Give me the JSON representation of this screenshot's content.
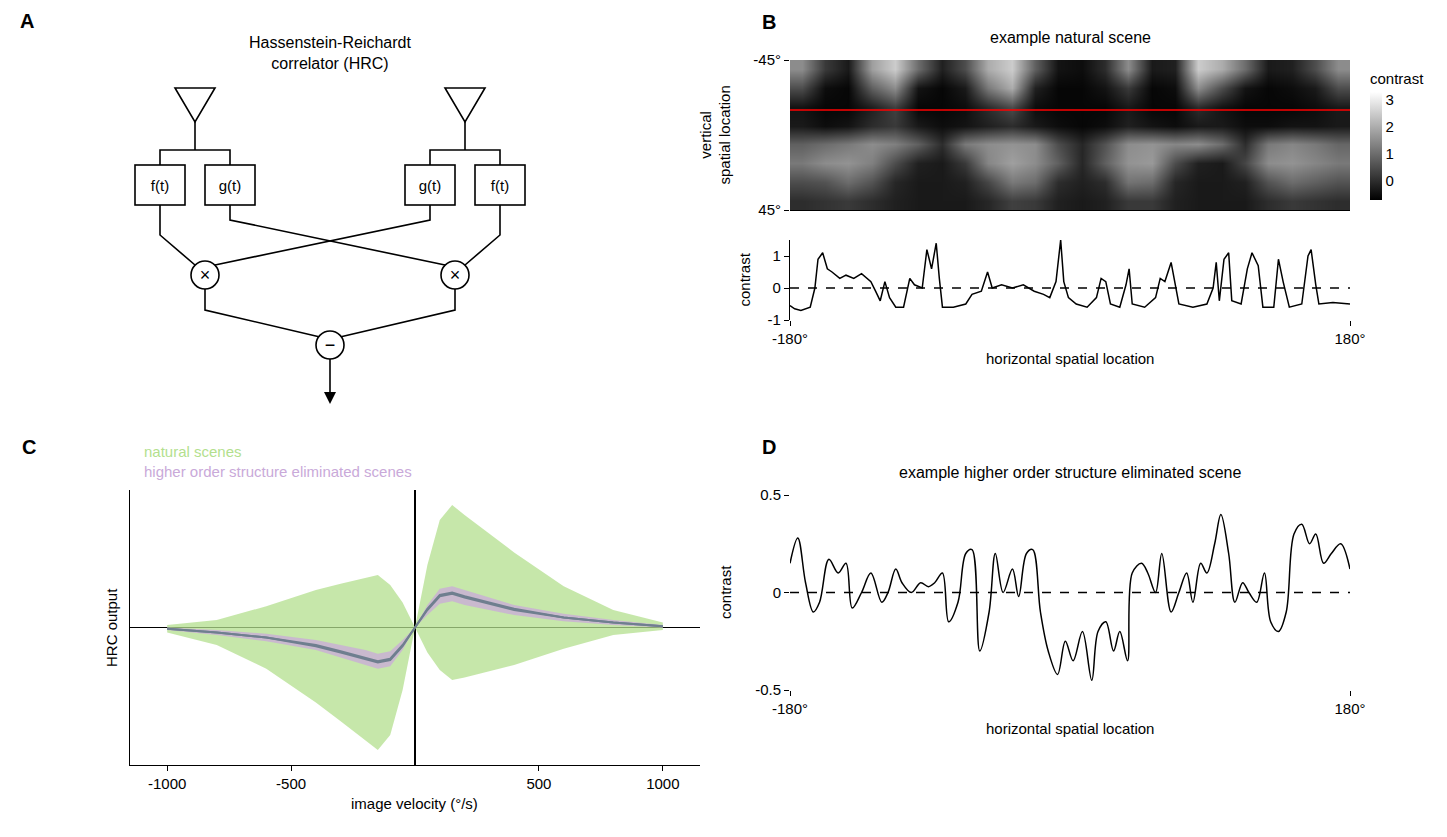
{
  "diagram": {
    "panel": "A",
    "title_lines": [
      "Hassenstein-Reichardt",
      "correlator (HRC)"
    ],
    "boxes": [
      "f(t)",
      "g(t)",
      "g(t)",
      "f(t)"
    ],
    "multiply": "×",
    "subtract": "−"
  },
  "chart_data": [
    {
      "type": "heatmap",
      "panel": "B",
      "title": "example natural scene",
      "ylabel": "vertical spatial location",
      "x": [
        -172.5,
        -157.5,
        -142.5,
        -127.5,
        -112.5,
        -97.5,
        -82.5,
        -67.5,
        -52.5,
        -37.5,
        -22.5,
        -7.5,
        7.5,
        22.5,
        37.5,
        52.5,
        67.5,
        82.5,
        97.5,
        112.5,
        127.5,
        142.5,
        157.5,
        172.5
      ],
      "y": [
        -39.375,
        -28.125,
        -16.875,
        -5.625,
        5.625,
        16.875,
        28.125,
        39.375
      ],
      "z": [
        [
          1.5,
          0.2,
          -0.3,
          1.8,
          2.5,
          1.0,
          -0.2,
          0.5,
          2.0,
          2.5,
          0.8,
          -0.4,
          -0.5,
          0.0,
          1.5,
          -0.3,
          -0.2,
          2.5,
          2.0,
          1.0,
          -0.3,
          -0.2,
          0.5,
          1.5
        ],
        [
          0.5,
          -0.5,
          -0.6,
          0.8,
          1.5,
          -0.4,
          -0.6,
          -0.3,
          1.2,
          2.0,
          -0.2,
          -0.6,
          -0.6,
          -0.4,
          0.2,
          -0.6,
          -0.5,
          1.5,
          0.5,
          -0.4,
          -0.6,
          -0.5,
          -0.3,
          0.5
        ],
        [
          -0.4,
          -0.6,
          -0.6,
          -0.2,
          0.3,
          -0.6,
          -0.6,
          -0.5,
          0.0,
          0.5,
          -0.5,
          -0.6,
          -0.6,
          -0.6,
          -0.3,
          -0.6,
          -0.6,
          0.0,
          -0.4,
          -0.6,
          -0.6,
          -0.6,
          -0.5,
          -0.3
        ],
        [
          -0.3,
          -0.5,
          -0.4,
          0.0,
          0.2,
          -0.3,
          -0.5,
          -0.4,
          -0.2,
          0.0,
          -0.3,
          -0.5,
          -0.6,
          -0.5,
          -0.2,
          -0.4,
          -0.5,
          -0.3,
          -0.3,
          -0.5,
          -0.5,
          -0.4,
          -0.4,
          -0.3
        ],
        [
          0.8,
          1.0,
          1.2,
          1.5,
          1.3,
          0.8,
          0.0,
          1.2,
          1.5,
          1.6,
          1.5,
          0.5,
          -0.1,
          0.6,
          1.5,
          1.6,
          1.4,
          1.5,
          1.0,
          0.0,
          1.2,
          1.4,
          1.2,
          0.9
        ],
        [
          1.2,
          1.5,
          1.6,
          1.3,
          0.5,
          -0.2,
          -0.3,
          0.2,
          1.4,
          1.8,
          1.5,
          0.8,
          -0.1,
          0.8,
          1.6,
          1.7,
          0.5,
          -0.2,
          -0.3,
          0.4,
          1.5,
          1.6,
          1.4,
          1.2
        ],
        [
          0.5,
          0.6,
          1.0,
          0.6,
          -0.1,
          -0.3,
          -0.3,
          -0.2,
          0.4,
          1.2,
          1.0,
          0.0,
          -0.2,
          0.0,
          1.1,
          1.0,
          -0.1,
          -0.3,
          -0.3,
          -0.2,
          0.6,
          1.0,
          0.8,
          0.6
        ],
        [
          0.0,
          0.1,
          0.2,
          0.0,
          -0.2,
          -0.3,
          -0.3,
          -0.3,
          -0.1,
          0.3,
          0.2,
          -0.2,
          -0.3,
          -0.2,
          0.2,
          0.2,
          -0.2,
          -0.3,
          -0.3,
          -0.3,
          0.0,
          0.2,
          0.1,
          0.0
        ]
      ],
      "xlim": [
        -180,
        180
      ],
      "ylim": [
        45,
        -45
      ],
      "yticks": [
        {
          "value": -45,
          "label": "-45°"
        },
        {
          "value": 45,
          "label": "45°"
        }
      ],
      "zlim": [
        -0.7,
        3.3
      ],
      "zticks": [
        0,
        1,
        2,
        3
      ],
      "colorbar_title": "contrast",
      "reference_line": {
        "y": -15,
        "color": "#ff0000",
        "line_style": "solid"
      },
      "tick_labels": "y",
      "grid": false
    },
    {
      "type": "line",
      "xlabel": "horizontal spatial location",
      "ylabel": "contrast",
      "x": [
        -180,
        -177,
        -173,
        -167,
        -164,
        -162,
        -159,
        -156,
        -153,
        -148,
        -144,
        -139,
        -134,
        -128,
        -125,
        -122,
        -119,
        -116,
        -112,
        -107,
        -103,
        -100,
        -95,
        -92,
        -89,
        -86,
        -84,
        -82,
        -75,
        -67,
        -63,
        -57,
        -53,
        -50,
        -44,
        -37,
        -30,
        -23,
        -17,
        -13,
        -9,
        -6,
        -4,
        -1,
        4,
        11,
        17,
        20,
        23,
        26,
        32,
        36,
        38,
        40,
        48,
        55,
        58,
        61,
        65,
        67,
        70,
        79,
        88,
        92,
        94,
        96,
        99,
        102,
        104,
        110,
        114,
        117,
        121,
        124,
        131,
        134,
        137,
        141,
        149,
        153,
        155,
        158,
        160,
        169,
        180
      ],
      "series": [
        {
          "color": "#000000",
          "line_style": "solid",
          "values": [
            -0.55,
            -0.65,
            -0.7,
            -0.6,
            0.0,
            0.9,
            1.1,
            0.6,
            0.5,
            0.3,
            0.4,
            0.3,
            0.45,
            0.2,
            -0.1,
            -0.4,
            0.2,
            -0.3,
            -0.6,
            -0.6,
            0.3,
            0.1,
            0.0,
            1.2,
            0.6,
            1.4,
            0.3,
            -0.6,
            -0.6,
            -0.5,
            -0.2,
            -0.1,
            0.5,
            0.0,
            0.1,
            0.0,
            0.1,
            -0.1,
            -0.2,
            -0.3,
            0.2,
            1.5,
            0.2,
            -0.3,
            -0.5,
            -0.6,
            -0.3,
            0.3,
            0.2,
            -0.5,
            -0.6,
            0.1,
            0.6,
            -0.5,
            -0.6,
            -0.3,
            0.3,
            0.2,
            0.8,
            0.3,
            -0.5,
            -0.6,
            -0.5,
            0.0,
            0.8,
            -0.4,
            0.9,
            1.1,
            -0.4,
            -0.5,
            0.6,
            1.1,
            0.7,
            -0.6,
            -0.6,
            0.9,
            0.2,
            -0.6,
            -0.5,
            1.0,
            1.2,
            0.1,
            -0.5,
            -0.45,
            -0.5
          ]
        }
      ],
      "xlim": [
        -180,
        180
      ],
      "ylim": [
        -1,
        1.5
      ],
      "xticks": [
        {
          "value": -180,
          "label": "-180°"
        },
        {
          "value": 180,
          "label": "180°"
        }
      ],
      "yticks": [
        -1,
        0,
        1
      ],
      "reference_line": {
        "y": 0,
        "color": "#000000",
        "line_style": "dashed"
      },
      "grid": false
    },
    {
      "type": "line",
      "panel": "C",
      "xlabel": "image velocity (°/s)",
      "ylabel": "HRC output",
      "x": [
        -1000,
        -800,
        -600,
        -400,
        -300,
        -200,
        -150,
        -100,
        -50,
        0,
        50,
        100,
        150,
        200,
        300,
        400,
        600,
        800,
        1000
      ],
      "series": [
        {
          "name": "natural scenes",
          "color": "#b3df8e",
          "values": [
            -0.01,
            -0.04,
            -0.08,
            -0.15,
            -0.2,
            -0.25,
            -0.28,
            -0.26,
            -0.15,
            0,
            0.15,
            0.26,
            0.28,
            0.25,
            0.2,
            0.15,
            0.08,
            0.04,
            0.01
          ],
          "spread": [
            0.03,
            0.1,
            0.25,
            0.45,
            0.55,
            0.65,
            0.7,
            0.6,
            0.35,
            0,
            0.35,
            0.6,
            0.7,
            0.65,
            0.55,
            0.45,
            0.25,
            0.1,
            0.03
          ]
        },
        {
          "name": "higher order structure eliminated scenes",
          "color": "#c9a9d9",
          "values": [
            -0.01,
            -0.04,
            -0.08,
            -0.14,
            -0.19,
            -0.24,
            -0.27,
            -0.25,
            -0.14,
            0,
            0.14,
            0.25,
            0.27,
            0.24,
            0.19,
            0.14,
            0.08,
            0.04,
            0.01
          ],
          "spread": [
            0.01,
            0.02,
            0.03,
            0.04,
            0.05,
            0.06,
            0.06,
            0.06,
            0.04,
            0,
            0.04,
            0.06,
            0.06,
            0.06,
            0.05,
            0.04,
            0.03,
            0.02,
            0.01
          ]
        }
      ],
      "xlim": [
        -1150,
        1150
      ],
      "ylim": [
        -1.1,
        1.1
      ],
      "xticks": [
        -1000,
        -500,
        500,
        1000
      ],
      "tick_labels": "x",
      "grid": false
    },
    {
      "type": "line",
      "panel": "D",
      "title": "example higher order structure eliminated scene",
      "xlabel": "horizontal spatial location",
      "ylabel": "contrast",
      "x": [
        -180,
        -175,
        -170,
        -165,
        -161,
        -155,
        -149,
        -144,
        -140,
        -134,
        -128,
        -121,
        -117,
        -112,
        -108,
        -102,
        -96,
        -91,
        -87,
        -82,
        -78,
        -72,
        -67,
        -63,
        -58,
        -52,
        -48,
        -43,
        -37,
        -33,
        -28,
        -24,
        -19,
        -14,
        -8,
        -3,
        2,
        8,
        14,
        18,
        23,
        28,
        32,
        37,
        40,
        46,
        50,
        55,
        59,
        65,
        70,
        75,
        79,
        84,
        88,
        93,
        97,
        102,
        106,
        111,
        115,
        120,
        125,
        129,
        134,
        139,
        144,
        149,
        154,
        158,
        163,
        168,
        174,
        180
      ],
      "series": [
        {
          "color": "#000000",
          "line_style": "smooth",
          "values": [
            0.15,
            0.28,
            0.05,
            -0.1,
            -0.05,
            0.17,
            0.1,
            0.15,
            -0.08,
            0.0,
            0.1,
            -0.05,
            0.0,
            0.12,
            0.05,
            0.0,
            0.05,
            0.03,
            0.05,
            0.1,
            -0.15,
            -0.05,
            0.2,
            0.22,
            -0.3,
            -0.1,
            0.2,
            0.0,
            0.12,
            -0.02,
            0.2,
            0.22,
            -0.1,
            -0.3,
            -0.42,
            -0.25,
            -0.35,
            -0.2,
            -0.45,
            -0.2,
            -0.15,
            -0.3,
            -0.2,
            -0.35,
            0.1,
            0.15,
            0.1,
            0.0,
            0.2,
            -0.1,
            0.0,
            0.1,
            -0.05,
            0.15,
            0.1,
            0.25,
            0.4,
            0.2,
            -0.05,
            0.05,
            0.0,
            -0.05,
            0.1,
            -0.15,
            -0.2,
            -0.1,
            0.3,
            0.35,
            0.25,
            0.3,
            0.15,
            0.2,
            0.25,
            0.12
          ]
        }
      ],
      "xlim": [
        -180,
        180
      ],
      "ylim": [
        -0.5,
        0.5
      ],
      "xticks": [
        {
          "value": -180,
          "label": "-180°"
        },
        {
          "value": 180,
          "label": "180°"
        }
      ],
      "yticks": [
        -0.5,
        0,
        0.5
      ],
      "reference_line": {
        "y": 0,
        "color": "#000000",
        "line_style": "dashed"
      },
      "grid": false
    }
  ]
}
